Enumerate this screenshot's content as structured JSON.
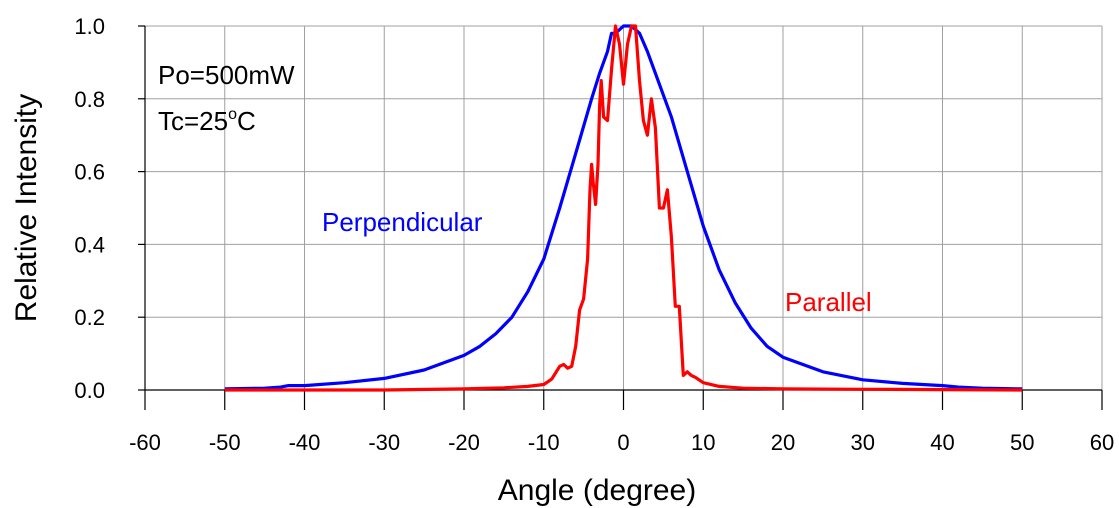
{
  "chart_data": {
    "type": "line",
    "title": "",
    "xlabel": "Angle (degree)",
    "ylabel": "Relative Intensity",
    "xlim": [
      -60,
      60
    ],
    "ylim": [
      0,
      1.0
    ],
    "xticks": [
      -60,
      -50,
      -40,
      -30,
      -20,
      -10,
      0,
      10,
      20,
      30,
      40,
      50,
      60
    ],
    "yticks": [
      0.0,
      0.2,
      0.4,
      0.6,
      0.8,
      1.0
    ],
    "xtick_labels": [
      "-60",
      "-50",
      "-40",
      "-30",
      "-20",
      "-10",
      "0",
      "10",
      "20",
      "30",
      "40",
      "50",
      "60"
    ],
    "ytick_labels": [
      "0.0",
      "0.2",
      "0.4",
      "0.6",
      "0.8",
      "1.0"
    ],
    "grid": true,
    "annotations": {
      "power": "Po=500mW",
      "temp_prefix": "Tc=25",
      "temp_sup": "o",
      "temp_suffix": "C"
    },
    "series": [
      {
        "name": "Perpendicular",
        "color": "#0000ff",
        "x": [
          -50,
          -45,
          -43,
          -42,
          -40,
          -35,
          -30,
          -25,
          -20,
          -18,
          -16,
          -14,
          -12,
          -10,
          -8,
          -6,
          -4,
          -3,
          -2,
          -1.5,
          -1,
          0,
          1,
          2,
          3,
          4,
          6,
          8,
          10,
          12,
          14,
          16,
          18,
          20,
          25,
          30,
          35,
          40,
          41,
          42,
          45,
          50
        ],
        "y": [
          0.003,
          0.005,
          0.008,
          0.012,
          0.012,
          0.02,
          0.032,
          0.055,
          0.095,
          0.12,
          0.155,
          0.2,
          0.27,
          0.36,
          0.5,
          0.65,
          0.8,
          0.87,
          0.93,
          0.98,
          0.98,
          1.0,
          1.0,
          0.98,
          0.93,
          0.87,
          0.75,
          0.6,
          0.45,
          0.33,
          0.24,
          0.17,
          0.12,
          0.09,
          0.05,
          0.028,
          0.018,
          0.012,
          0.01,
          0.008,
          0.005,
          0.003
        ]
      },
      {
        "name": "Parallel",
        "color": "#ff0000",
        "x": [
          -50,
          -40,
          -30,
          -20,
          -15,
          -12,
          -10,
          -9,
          -8,
          -7.5,
          -7,
          -6.5,
          -6,
          -5.5,
          -5,
          -4.5,
          -4.2,
          -4,
          -3.8,
          -3.5,
          -3.2,
          -3,
          -2.8,
          -2.5,
          -2,
          -1.5,
          -1,
          -0.5,
          0,
          0.5,
          1,
          1.5,
          2,
          2.5,
          3,
          3.5,
          4,
          4.5,
          5,
          5.5,
          6,
          6.5,
          7,
          7.5,
          8,
          8.5,
          9,
          10,
          12,
          15,
          20,
          30,
          40,
          50
        ],
        "y": [
          0.0,
          0.0,
          0.0,
          0.003,
          0.006,
          0.01,
          0.015,
          0.03,
          0.065,
          0.07,
          0.06,
          0.065,
          0.12,
          0.22,
          0.25,
          0.36,
          0.55,
          0.62,
          0.57,
          0.51,
          0.62,
          0.78,
          0.85,
          0.75,
          0.74,
          0.88,
          1.0,
          0.95,
          0.84,
          0.95,
          1.0,
          1.0,
          0.85,
          0.74,
          0.7,
          0.8,
          0.72,
          0.5,
          0.5,
          0.55,
          0.42,
          0.23,
          0.23,
          0.04,
          0.05,
          0.04,
          0.035,
          0.02,
          0.01,
          0.005,
          0.003,
          0.002,
          0.001,
          0.0
        ]
      }
    ]
  }
}
